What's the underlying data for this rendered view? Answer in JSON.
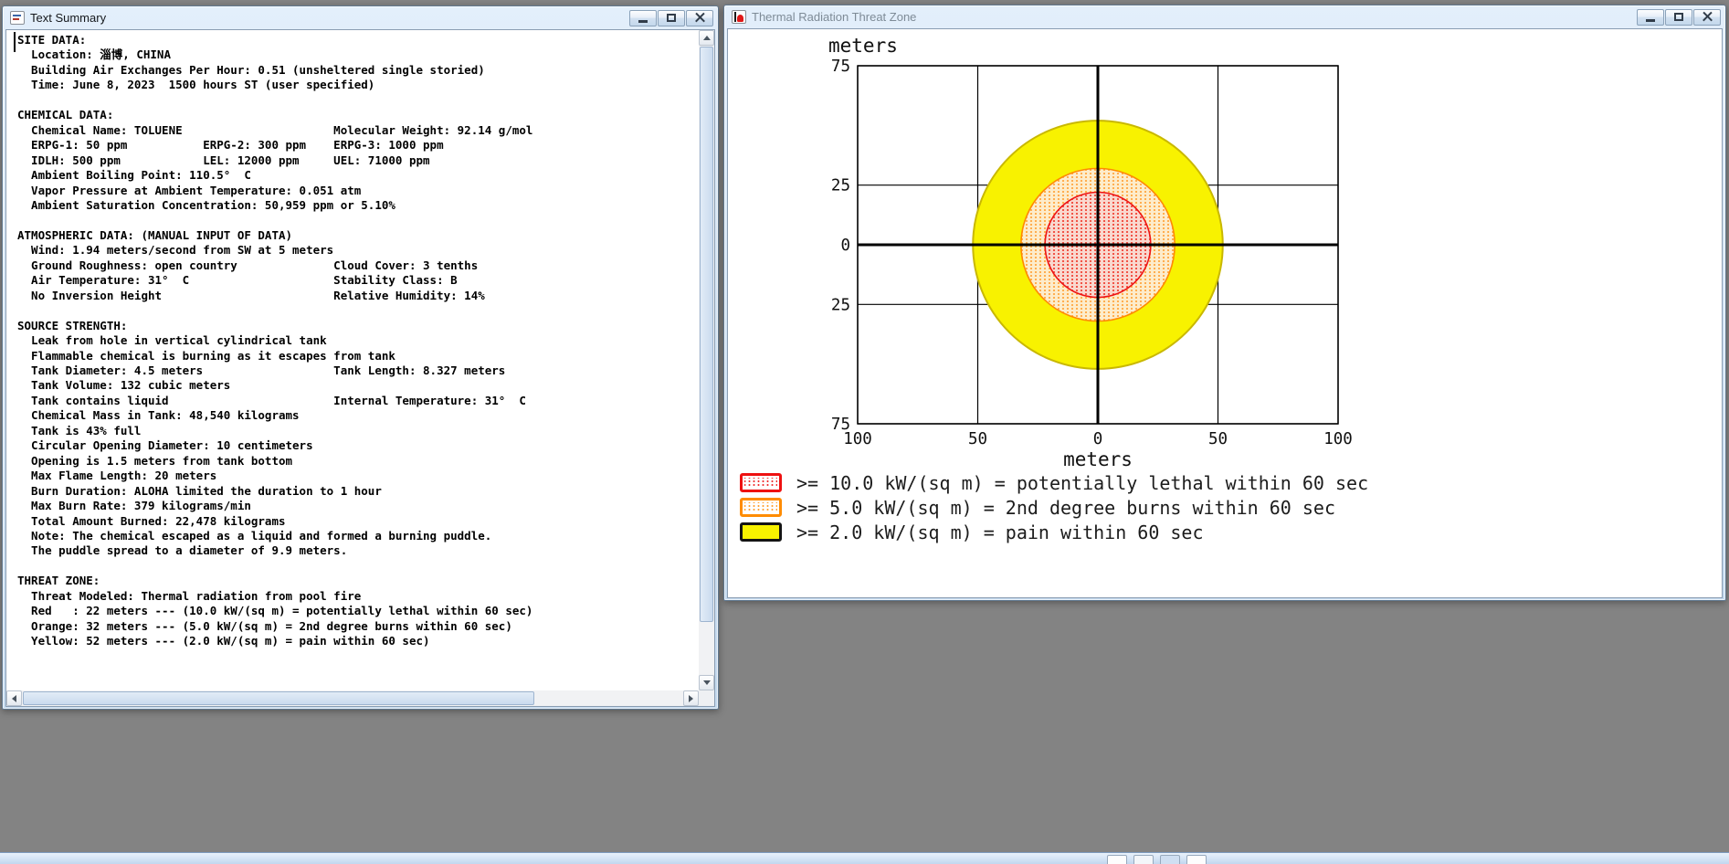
{
  "left_window": {
    "title": "Text Summary",
    "text_lines": [
      "SITE DATA:",
      "  Location: 淄博, CHINA",
      "  Building Air Exchanges Per Hour: 0.51 (unsheltered single storied)",
      "  Time: June 8, 2023  1500 hours ST (user specified)",
      "",
      "CHEMICAL DATA:",
      "  Chemical Name: TOLUENE                      Molecular Weight: 92.14 g/mol",
      "  ERPG-1: 50 ppm           ERPG-2: 300 ppm    ERPG-3: 1000 ppm",
      "  IDLH: 500 ppm            LEL: 12000 ppm     UEL: 71000 ppm",
      "  Ambient Boiling Point: 110.5°  C",
      "  Vapor Pressure at Ambient Temperature: 0.051 atm",
      "  Ambient Saturation Concentration: 50,959 ppm or 5.10%",
      "",
      "ATMOSPHERIC DATA: (MANUAL INPUT OF DATA)",
      "  Wind: 1.94 meters/second from SW at 5 meters",
      "  Ground Roughness: open country              Cloud Cover: 3 tenths",
      "  Air Temperature: 31°  C                     Stability Class: B",
      "  No Inversion Height                         Relative Humidity: 14%",
      "",
      "SOURCE STRENGTH:",
      "  Leak from hole in vertical cylindrical tank",
      "  Flammable chemical is burning as it escapes from tank",
      "  Tank Diameter: 4.5 meters                   Tank Length: 8.327 meters",
      "  Tank Volume: 132 cubic meters",
      "  Tank contains liquid                        Internal Temperature: 31°  C",
      "  Chemical Mass in Tank: 48,540 kilograms",
      "  Tank is 43% full",
      "  Circular Opening Diameter: 10 centimeters",
      "  Opening is 1.5 meters from tank bottom",
      "  Max Flame Length: 20 meters",
      "  Burn Duration: ALOHA limited the duration to 1 hour",
      "  Max Burn Rate: 379 kilograms/min",
      "  Total Amount Burned: 22,478 kilograms",
      "  Note: The chemical escaped as a liquid and formed a burning puddle.",
      "  The puddle spread to a diameter of 9.9 meters.",
      "",
      "THREAT ZONE:",
      "  Threat Modeled: Thermal radiation from pool fire",
      "  Red   : 22 meters --- (10.0 kW/(sq m) = potentially lethal within 60 sec)",
      "  Orange: 32 meters --- (5.0 kW/(sq m) = 2nd degree burns within 60 sec)",
      "  Yellow: 52 meters --- (2.0 kW/(sq m) = pain within 60 sec)"
    ]
  },
  "right_window": {
    "title": "Thermal Radiation Threat Zone"
  },
  "chart_data": {
    "type": "threat-zone-plot",
    "xlabel": "meters",
    "ylabel": "meters",
    "x_range": [
      -100,
      100
    ],
    "y_range": [
      -75,
      75
    ],
    "x_gridlines": [
      -100,
      -50,
      0,
      50,
      100
    ],
    "y_gridlines": [
      75,
      25,
      0,
      -25,
      -75
    ],
    "x_tick_labels": [
      "100",
      "50",
      "0",
      "50",
      "100"
    ],
    "y_tick_labels": [
      "75",
      "25",
      "0",
      "25",
      "75"
    ],
    "grid": true,
    "legend_position": "bottom-left",
    "zones": [
      {
        "name": "yellow-pain-zone",
        "threshold_kw_per_sq_m": 2.0,
        "radius_m": 52,
        "fill": "#f8f200",
        "outline": "#c9b800"
      },
      {
        "name": "orange-burns-zone",
        "threshold_kw_per_sq_m": 5.0,
        "radius_m": 32,
        "base": "#fdeccb",
        "pattern": "pat-orange",
        "outline": "#ff8a00"
      },
      {
        "name": "red-lethal-zone",
        "threshold_kw_per_sq_m": 10.0,
        "radius_m": 22,
        "base": "#f9d8cf",
        "pattern": "pat-red",
        "outline": "#ee1414"
      }
    ],
    "legend": [
      {
        "swatch": "red-stipple",
        "label": ">= 10.0 kW/(sq m) = potentially lethal within 60 sec"
      },
      {
        "swatch": "orange-stipple",
        "label": ">= 5.0 kW/(sq m) = 2nd degree burns within 60 sec"
      },
      {
        "swatch": "yellow-solid",
        "label": ">= 2.0 kW/(sq m) = pain within 60 sec"
      }
    ]
  }
}
